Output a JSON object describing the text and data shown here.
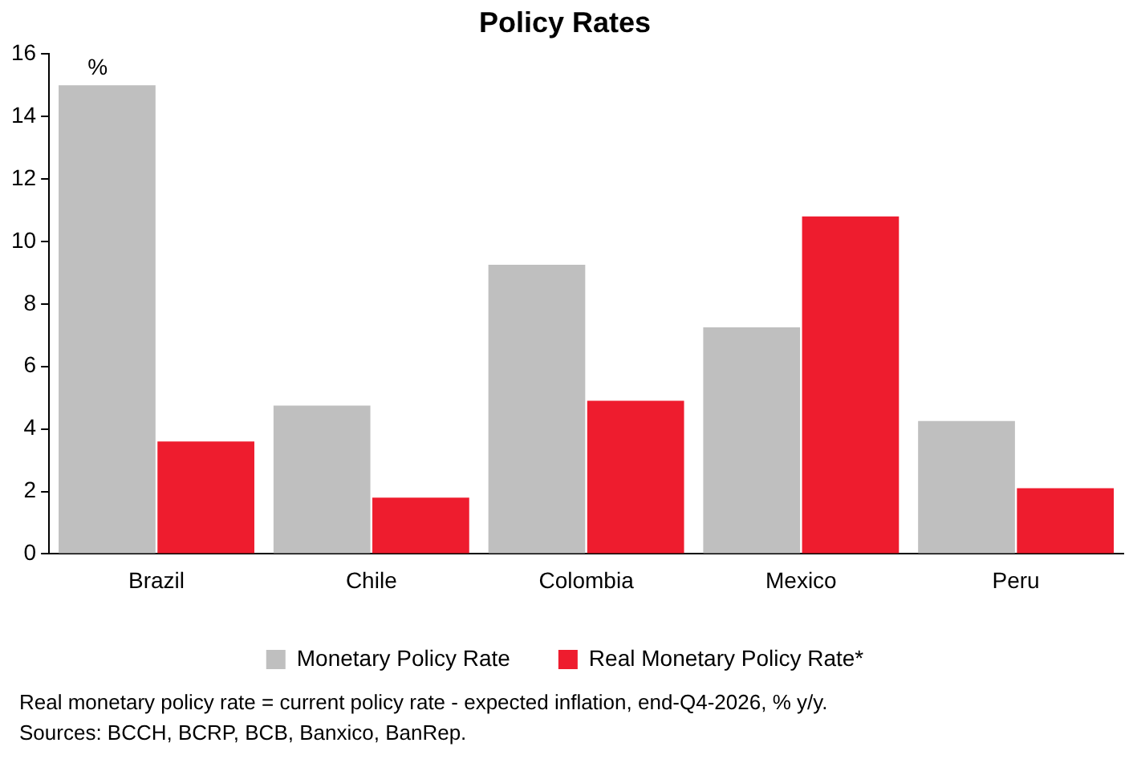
{
  "chart_data": {
    "type": "bar",
    "title": "Policy Rates",
    "ylabel": "%",
    "categories": [
      "Brazil",
      "Chile",
      "Colombia",
      "Mexico",
      "Peru"
    ],
    "series": [
      {
        "name": "Monetary Policy Rate",
        "color": "#bfbfbf",
        "values": [
          15,
          4.75,
          9.25,
          7.25,
          4.25
        ]
      },
      {
        "name": "Real Monetary Policy Rate*",
        "color": "#ee1c2e",
        "values": [
          3.6,
          1.8,
          4.9,
          10.8,
          2.1
        ]
      }
    ],
    "ylim": [
      0,
      16
    ],
    "yticks": [
      0,
      2,
      4,
      6,
      8,
      10,
      12,
      14,
      16
    ],
    "grid": false,
    "legend": "bottom",
    "annotations": [
      "Real monetary policy rate = current policy rate - expected inflation, end-Q4-2026, % y/y.",
      "Sources: BCCH, BCRP, BCB, Banxico, BanRep."
    ]
  }
}
